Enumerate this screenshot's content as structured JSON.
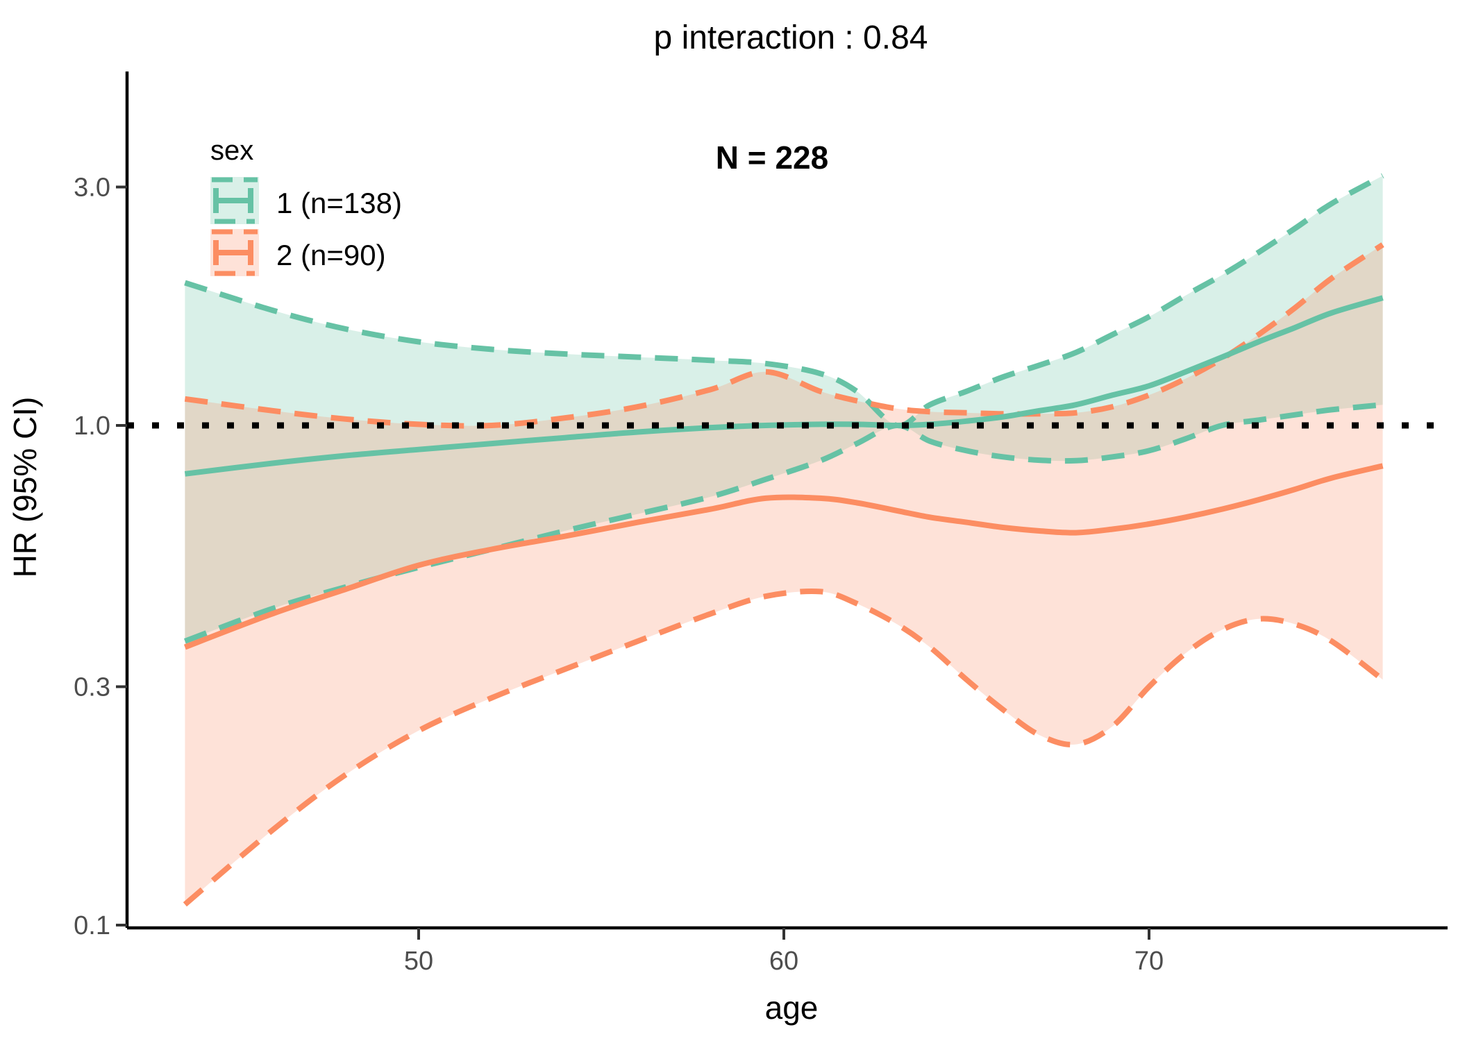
{
  "title": "p interaction : 0.84",
  "annotation": "N = 228",
  "reference_line_hr": 1.0,
  "legend": {
    "title": "sex",
    "items": [
      {
        "label": "1 (n=138)",
        "color": "#66C2A5"
      },
      {
        "label": "2 (n=90)",
        "color": "#FC8D62"
      }
    ]
  },
  "axes": {
    "x": {
      "label": "age",
      "ticks": [
        {
          "value": 50,
          "label": "50"
        },
        {
          "value": 60,
          "label": "60"
        },
        {
          "value": 70,
          "label": "70"
        }
      ]
    },
    "y": {
      "label": "HR (95% CI)",
      "scale": "log10",
      "ticks": [
        {
          "value": 3.0,
          "label": "3.0"
        },
        {
          "value": 1.0,
          "label": "1.0"
        },
        {
          "value": 0.3,
          "label": "0.3"
        },
        {
          "value": 0.1,
          "label": "0.1"
        }
      ]
    }
  },
  "colors": {
    "series1": "#66C2A5",
    "series2": "#FC8D62",
    "ribbon_opacity": 0.25,
    "reference": "#000000",
    "axis": "#000000",
    "tick_label": "#4D4D4D"
  },
  "chart_data": {
    "type": "line",
    "title": "p interaction : 0.84",
    "xlabel": "age",
    "ylabel": "HR (95% CI)",
    "y_scale": "log10",
    "x_range": [
      43.6,
      76.4
    ],
    "y_ticks": [
      3.0,
      1.0,
      0.3,
      0.1
    ],
    "reference_hr": 1.0,
    "x": [
      43.6,
      46,
      48,
      50,
      52,
      54,
      56,
      58,
      59.5,
      61,
      62,
      63.1,
      64,
      65,
      66,
      67,
      68,
      69,
      70,
      71,
      72,
      73,
      74,
      75,
      76.4
    ],
    "series": [
      {
        "name": "1 (n=138)",
        "color": "#66C2A5",
        "hr": [
          0.8,
          0.84,
          0.87,
          0.895,
          0.92,
          0.945,
          0.97,
          0.99,
          1.0,
          1.005,
          1.005,
          1.0,
          1.005,
          1.02,
          1.04,
          1.07,
          1.1,
          1.15,
          1.2,
          1.28,
          1.37,
          1.47,
          1.57,
          1.68,
          1.8
        ],
        "upper": [
          1.93,
          1.7,
          1.56,
          1.47,
          1.42,
          1.39,
          1.37,
          1.35,
          1.33,
          1.27,
          1.17,
          1.0,
          1.1,
          1.17,
          1.25,
          1.32,
          1.4,
          1.52,
          1.65,
          1.82,
          2.0,
          2.22,
          2.48,
          2.78,
          3.16
        ],
        "lower": [
          0.37,
          0.43,
          0.475,
          0.52,
          0.565,
          0.615,
          0.665,
          0.72,
          0.78,
          0.85,
          0.92,
          1.0,
          0.93,
          0.89,
          0.865,
          0.852,
          0.85,
          0.865,
          0.89,
          0.94,
          1.0,
          1.025,
          1.05,
          1.075,
          1.1
        ]
      },
      {
        "name": "2 (n=90)",
        "color": "#FC8D62",
        "hr": [
          0.36,
          0.42,
          0.47,
          0.525,
          0.565,
          0.6,
          0.64,
          0.68,
          0.715,
          0.715,
          0.7,
          0.675,
          0.655,
          0.64,
          0.625,
          0.615,
          0.61,
          0.62,
          0.635,
          0.655,
          0.68,
          0.71,
          0.745,
          0.785,
          0.83
        ],
        "upper": [
          1.13,
          1.07,
          1.03,
          1.005,
          1.0,
          1.035,
          1.09,
          1.18,
          1.28,
          1.17,
          1.12,
          1.08,
          1.065,
          1.06,
          1.055,
          1.055,
          1.06,
          1.09,
          1.15,
          1.24,
          1.36,
          1.52,
          1.72,
          1.97,
          2.3
        ],
        "lower": [
          0.11,
          0.155,
          0.2,
          0.245,
          0.285,
          0.325,
          0.37,
          0.42,
          0.455,
          0.465,
          0.44,
          0.4,
          0.36,
          0.31,
          0.27,
          0.24,
          0.23,
          0.25,
          0.3,
          0.35,
          0.39,
          0.41,
          0.4,
          0.37,
          0.31
        ]
      }
    ]
  }
}
